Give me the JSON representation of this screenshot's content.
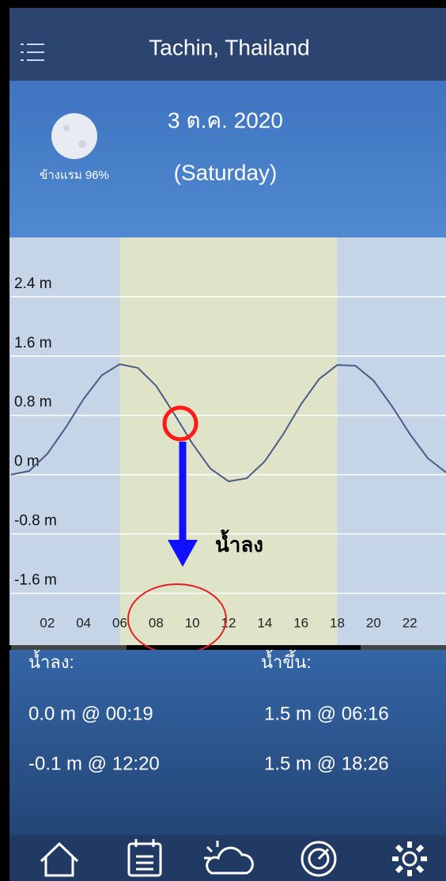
{
  "header": {
    "title": "Tachin, Thailand"
  },
  "date": {
    "line1": "3 ต.ค. 2020",
    "line2": "(Saturday)"
  },
  "moon": {
    "label": "ข้างแรม 96%"
  },
  "chart_data": {
    "type": "line",
    "x": [
      0,
      1,
      2,
      3,
      4,
      5,
      6,
      7,
      8,
      9,
      10,
      11,
      12,
      13,
      14,
      15,
      16,
      17,
      18,
      19,
      20,
      21,
      22,
      23,
      24
    ],
    "values": [
      0.0,
      0.05,
      0.28,
      0.63,
      1.02,
      1.34,
      1.49,
      1.44,
      1.2,
      0.82,
      0.42,
      0.08,
      -0.09,
      -0.05,
      0.18,
      0.54,
      0.95,
      1.29,
      1.48,
      1.47,
      1.27,
      0.93,
      0.55,
      0.22,
      0.03
    ],
    "color": "#4b5b88",
    "xlim": [
      0,
      24
    ],
    "ylim": [
      -2.3,
      3.2
    ],
    "xticks": [
      {
        "value": 2,
        "label": "02"
      },
      {
        "value": 4,
        "label": "04"
      },
      {
        "value": 6,
        "label": "06"
      },
      {
        "value": 8,
        "label": "08"
      },
      {
        "value": 10,
        "label": "10"
      },
      {
        "value": 12,
        "label": "12"
      },
      {
        "value": 14,
        "label": "14"
      },
      {
        "value": 16,
        "label": "16"
      },
      {
        "value": 18,
        "label": "18"
      },
      {
        "value": 20,
        "label": "20"
      },
      {
        "value": 22,
        "label": "22"
      }
    ],
    "yticks": [
      {
        "value": 2.4,
        "label": "2.4 m"
      },
      {
        "value": 1.6,
        "label": "1.6 m"
      },
      {
        "value": 0.8,
        "label": "0.8 m"
      },
      {
        "value": 0,
        "label": "0 m"
      },
      {
        "value": -0.8,
        "label": "-0.8 m"
      },
      {
        "value": -1.6,
        "label": "-1.6 m"
      }
    ],
    "grid": true,
    "daylight": [
      6,
      18
    ],
    "annotation": "น้ำลง"
  },
  "tides": {
    "low_label": "น้ำลง:",
    "high_label": "น้ำขึ้น:",
    "lows": [
      "0.0 m @ 00:19",
      "-0.1 m @ 12:20"
    ],
    "highs": [
      "1.5 m @ 06:16",
      "1.5 m @ 18:26"
    ]
  }
}
